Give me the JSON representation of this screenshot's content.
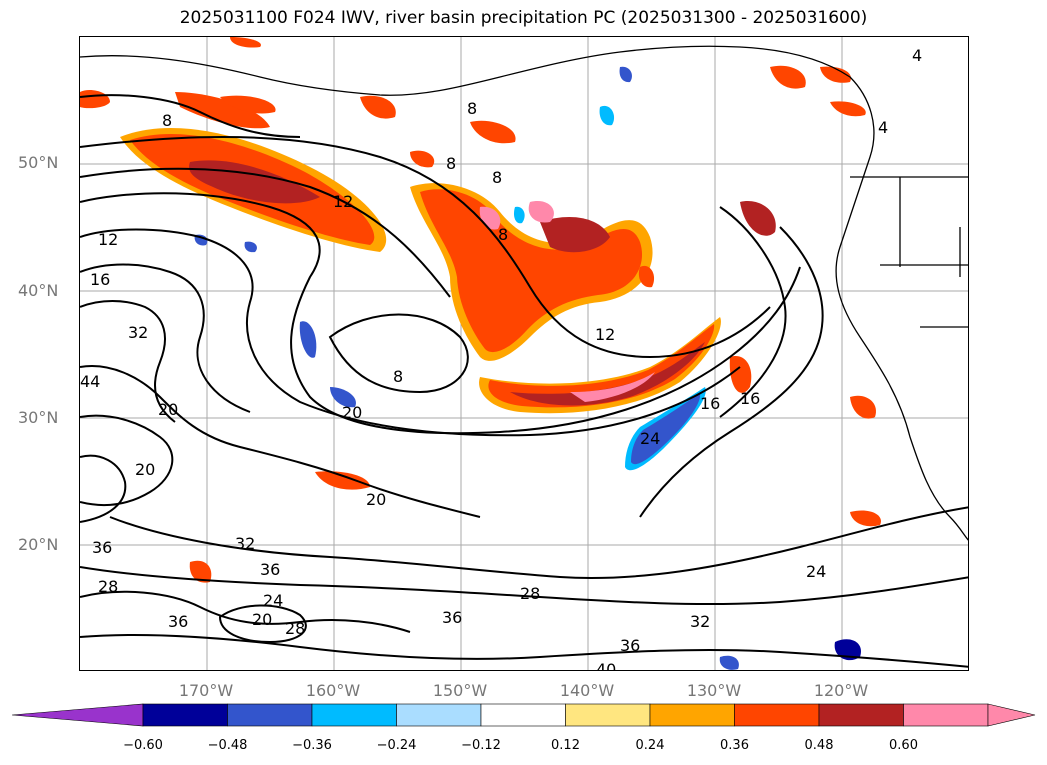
{
  "title": "2025031100 F024 IWV, river basin precipitation PC (2025031300 - 2025031600)",
  "lat_labels": [
    "50°N",
    "40°N",
    "30°N",
    "20°N"
  ],
  "lon_labels": [
    "170°W",
    "160°W",
    "150°W",
    "140°W",
    "130°W",
    "120°W"
  ],
  "contour_labels": [
    "4",
    "4",
    "8",
    "8",
    "8",
    "8",
    "8",
    "8",
    "12",
    "12",
    "12",
    "16",
    "16",
    "16",
    "20",
    "20",
    "20",
    "20",
    "20",
    "24",
    "24",
    "24",
    "28",
    "28",
    "28",
    "32",
    "32",
    "32",
    "36",
    "36",
    "36",
    "36",
    "36",
    "40",
    "44"
  ],
  "colorbar": {
    "ticks": [
      "−0.60",
      "−0.48",
      "−0.36",
      "−0.24",
      "−0.12",
      "0.12",
      "0.24",
      "0.36",
      "0.48",
      "0.60"
    ],
    "colors": [
      "#9933cc",
      "#000099",
      "#3355cc",
      "#00bbff",
      "#aaddff",
      "#ffffff",
      "#ffe680",
      "#ffa500",
      "#ff4500",
      "#b22222",
      "#ff88aa",
      "#ff88aa"
    ]
  }
}
